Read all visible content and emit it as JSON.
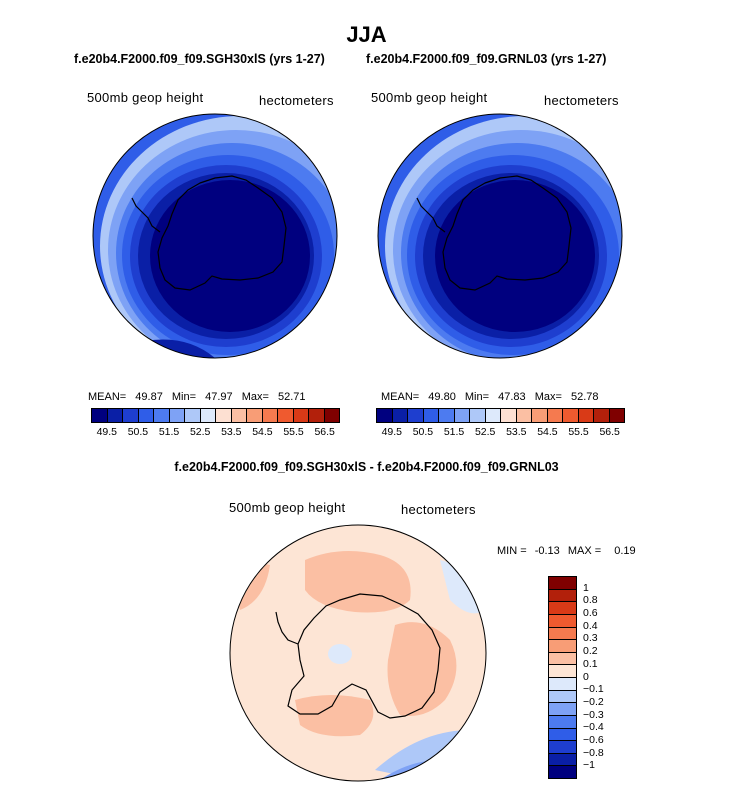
{
  "title": "JJA",
  "panels": [
    {
      "case": "f.e20b4.F2000.f09_f09.SGH30xlS (yrs 1-27)",
      "variable": "500mb geop height",
      "units": "hectometers",
      "stats": {
        "mean_label": "MEAN=",
        "mean": "49.87",
        "min_label": "Min=",
        "min": "47.97",
        "max_label": "Max=",
        "max": "52.71"
      }
    },
    {
      "case": "f.e20b4.F2000.f09_f09.GRNL03 (yrs 1-27)",
      "variable": "500mb geop height",
      "units": "hectometers",
      "stats": {
        "mean_label": "MEAN=",
        "mean": "49.80",
        "min_label": "Min=",
        "min": "47.83",
        "max_label": "Max=",
        "max": "52.78"
      }
    }
  ],
  "colorbar_top": {
    "colors": [
      "#00007f",
      "#0a1fa6",
      "#1e3ecf",
      "#2f5de8",
      "#4d7bf0",
      "#7ea2f5",
      "#aec8f8",
      "#dde9fb",
      "#fde0d2",
      "#fbbfa3",
      "#f89d76",
      "#f57a4f",
      "#ef5a2f",
      "#d93a17",
      "#b2200b",
      "#7f0000"
    ],
    "labels": [
      "49.5",
      "50.5",
      "51.5",
      "52.5",
      "53.5",
      "54.5",
      "55.5",
      "56.5"
    ]
  },
  "diff": {
    "title": "f.e20b4.F2000.f09_f09.SGH30xlS - f.e20b4.F2000.f09_f09.GRNL03",
    "variable": "500mb geop height",
    "units": "hectometers",
    "min_label": "MIN =",
    "min": "-0.13",
    "max_label": "MAX =",
    "max": "0.19",
    "colors": [
      "#7f0000",
      "#b2200b",
      "#d93a17",
      "#ef5a2f",
      "#f57a4f",
      "#f89d76",
      "#fbbfa3",
      "#fde5d5",
      "#dde9fb",
      "#aec8f8",
      "#7ea2f5",
      "#4d7bf0",
      "#2f5de8",
      "#1e3ecf",
      "#0a1fa6",
      "#00007f"
    ],
    "labels": [
      "1",
      "0.8",
      "0.6",
      "0.4",
      "0.3",
      "0.2",
      "0.1",
      "0",
      "−0.1",
      "−0.2",
      "−0.3",
      "−0.4",
      "−0.6",
      "−0.8",
      "−1"
    ]
  }
}
